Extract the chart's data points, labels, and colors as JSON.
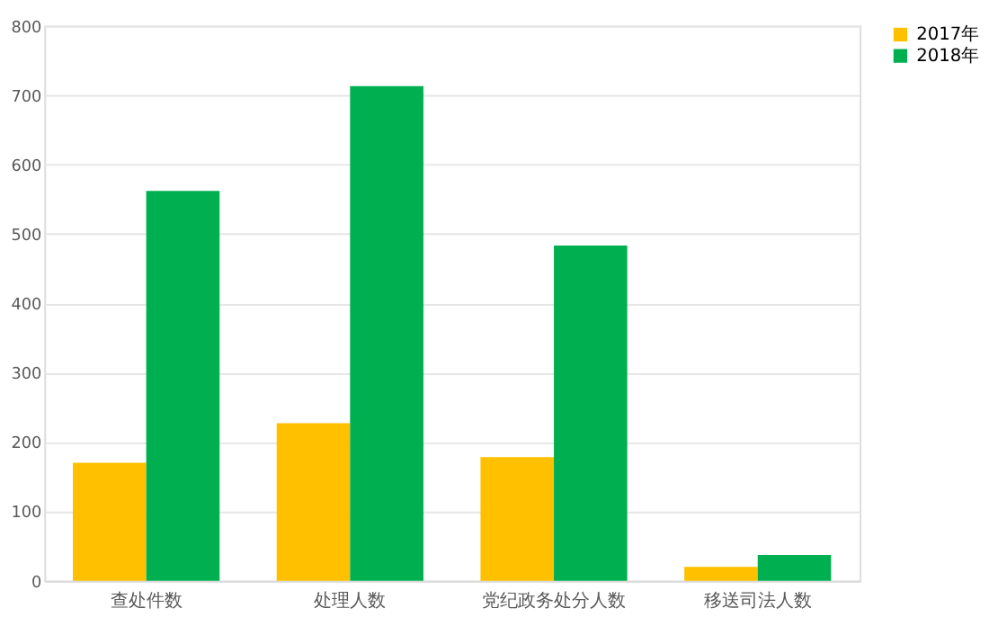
{
  "chart_data": {
    "type": "bar",
    "categories": [
      "查处件数",
      "处理人数",
      "党纪政务处分人数",
      "移送司法人数"
    ],
    "series": [
      {
        "name": "2017年",
        "color": "#ffc000",
        "values": [
          170,
          227,
          178,
          20
        ]
      },
      {
        "name": "2018年",
        "color": "#00b050",
        "values": [
          562,
          713,
          483,
          37
        ]
      }
    ],
    "ylim": [
      0,
      800
    ],
    "yticks": [
      0,
      100,
      200,
      300,
      400,
      500,
      600,
      700,
      800
    ],
    "grid": "y",
    "legend": "right"
  }
}
